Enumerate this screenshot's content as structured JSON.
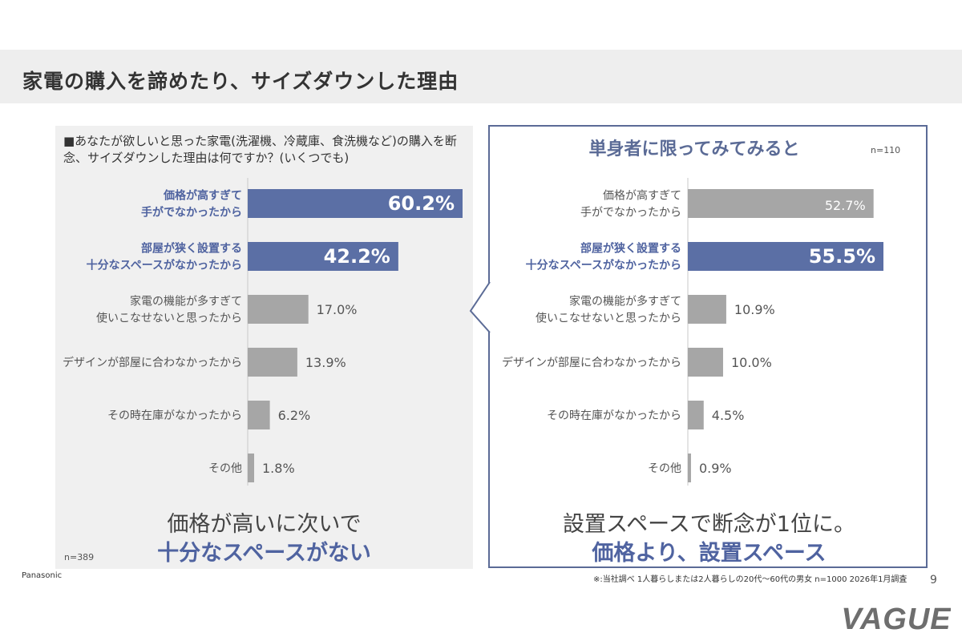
{
  "page": {
    "title": "家電の購入を諦めたり、サイズダウンした理由",
    "brand": "Panasonic",
    "note": "※:当社調べ 1人暮らしまたは2人暮らしの20代～60代の男女 n=1000 2026年1月調査",
    "page_number": "9",
    "logo_text": "VAGUE"
  },
  "left": {
    "question": "■あなたが欲しいと思った家電(洗濯機、冷蔵庫、食洗機など)の購入を断念、サイズダウンした理由は何ですか？(いくつでも)",
    "n_label": "n=389",
    "summary_line1": "価格が高いに次いで",
    "summary_line2": "十分なスペースがない"
  },
  "right": {
    "heading": "単身者に限ってみてみると",
    "n_label": "n=110",
    "summary_line1": "設置スペースで断念が1位に。",
    "summary_line2": "価格より、設置スペース"
  },
  "colors": {
    "highlight": "#5b6fa5",
    "normal": "#a6a6a6",
    "highlight_label": "#4f63a0",
    "normal_label": "#555555"
  },
  "chart_data": [
    {
      "type": "bar",
      "orientation": "horizontal",
      "categories": [
        [
          "価格が高すぎて",
          "手がでなかったから"
        ],
        [
          "部屋が狭く設置する",
          "十分なスペースがなかったから"
        ],
        [
          "家電の機能が多すぎて",
          "使いこなせないと思ったから"
        ],
        [
          "デザインが部屋に合わなかったから"
        ],
        [
          "その時在庫がなかったから"
        ],
        [
          "その他"
        ]
      ],
      "values": [
        60.2,
        42.2,
        17.0,
        13.9,
        6.2,
        1.8
      ],
      "value_labels": [
        "60.2%",
        "42.2%",
        "17.0%",
        "13.9%",
        "6.2%",
        "1.8%"
      ],
      "highlight": [
        true,
        true,
        false,
        false,
        false,
        false
      ],
      "labels_inside": [
        true,
        true,
        false,
        false,
        false,
        false
      ],
      "xlim": [
        0,
        60.2
      ]
    },
    {
      "type": "bar",
      "orientation": "horizontal",
      "categories": [
        [
          "価格が高すぎて",
          "手がでなかったから"
        ],
        [
          "部屋が狭く設置する",
          "十分なスペースがなかったから"
        ],
        [
          "家電の機能が多すぎて",
          "使いこなせないと思ったから"
        ],
        [
          "デザインが部屋に合わなかったから"
        ],
        [
          "その時在庫がなかったから"
        ],
        [
          "その他"
        ]
      ],
      "values": [
        52.7,
        55.5,
        10.9,
        10.0,
        4.5,
        0.9
      ],
      "value_labels": [
        "52.7%",
        "55.5%",
        "10.9%",
        "10.0%",
        "4.5%",
        "0.9%"
      ],
      "highlight": [
        false,
        true,
        false,
        false,
        false,
        false
      ],
      "labels_inside": [
        true,
        true,
        false,
        false,
        false,
        false
      ],
      "xlim": [
        0,
        55.5
      ]
    }
  ]
}
